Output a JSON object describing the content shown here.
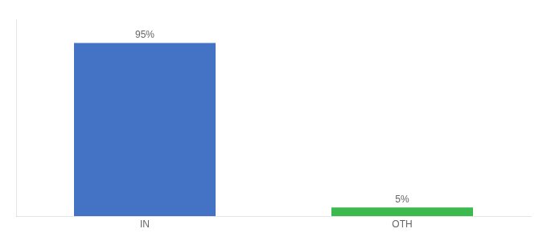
{
  "chart_data": {
    "type": "bar",
    "categories": [
      "IN",
      "OTH"
    ],
    "values": [
      95,
      5
    ],
    "value_labels": [
      "95%",
      "5%"
    ],
    "colors": [
      "#4472c4",
      "#3dba4e"
    ],
    "ylim": [
      0,
      108
    ],
    "data_labels": true,
    "tick_labels": "x",
    "grid": false
  }
}
